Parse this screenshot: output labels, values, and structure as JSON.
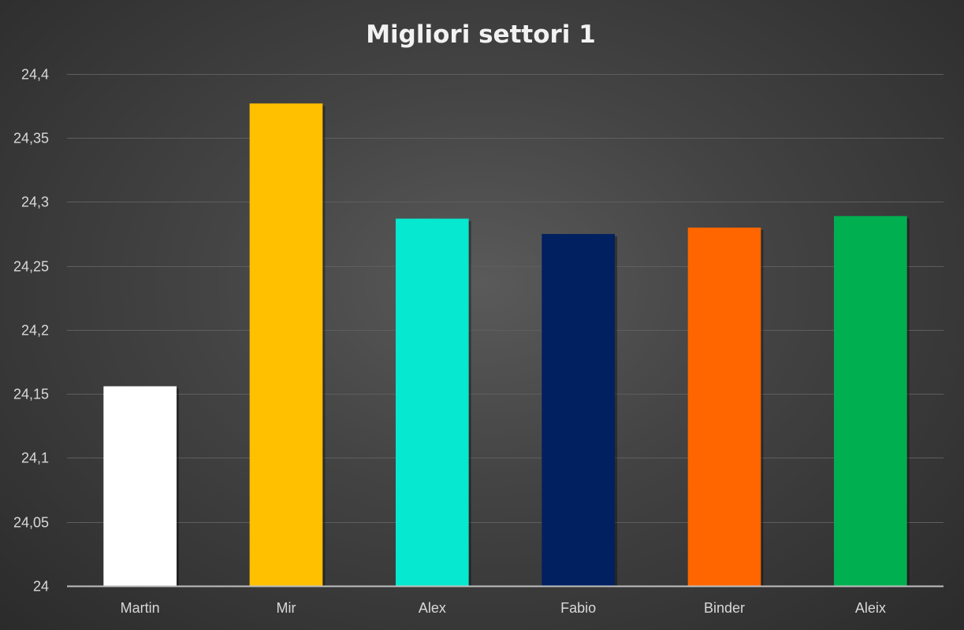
{
  "chart_data": {
    "type": "bar",
    "title": "Migliori settori 1",
    "xlabel": "",
    "ylabel": "",
    "categories": [
      "Martin",
      "Mir",
      "Alex",
      "Fabio",
      "Binder",
      "Aleix"
    ],
    "values": [
      24.156,
      24.377,
      24.287,
      24.275,
      24.28,
      24.289
    ],
    "colors": [
      "#ffffff",
      "#ffc000",
      "#07e8d0",
      "#002060",
      "#ff6600",
      "#00b050"
    ],
    "ylim": [
      24,
      24.4
    ],
    "yticks": [
      24,
      24.05,
      24.1,
      24.15,
      24.2,
      24.25,
      24.3,
      24.35,
      24.4
    ],
    "ytick_labels": [
      "24",
      "24,05",
      "24,1",
      "24,15",
      "24,2",
      "24,25",
      "24,3",
      "24,35",
      "24,4"
    ],
    "grid": true,
    "legend": "none"
  }
}
